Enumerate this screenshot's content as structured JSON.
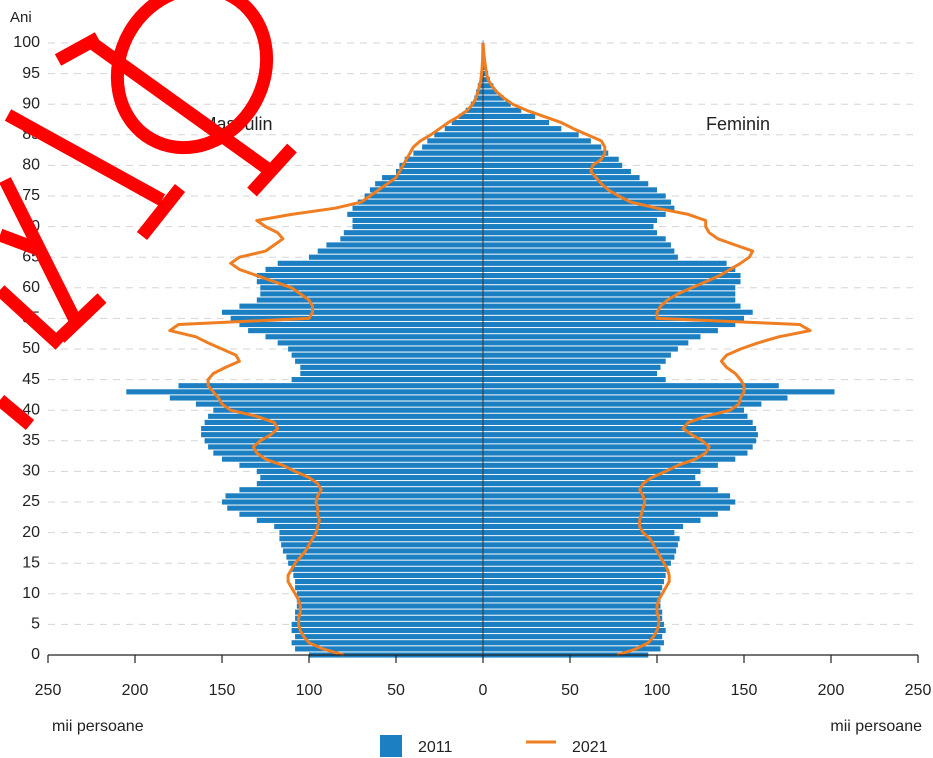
{
  "chart_data": {
    "type": "pyramid",
    "y_label": "Ani",
    "x_label": "mii persoane",
    "labels": {
      "male": "Masculin",
      "female": "Feminin"
    },
    "ages": [
      0,
      1,
      2,
      3,
      4,
      5,
      6,
      7,
      8,
      9,
      10,
      11,
      12,
      13,
      14,
      15,
      16,
      17,
      18,
      19,
      20,
      21,
      22,
      23,
      24,
      25,
      26,
      27,
      28,
      29,
      30,
      31,
      32,
      33,
      34,
      35,
      36,
      37,
      38,
      39,
      40,
      41,
      42,
      43,
      44,
      45,
      46,
      47,
      48,
      49,
      50,
      51,
      52,
      53,
      54,
      55,
      56,
      57,
      58,
      59,
      60,
      61,
      62,
      63,
      64,
      65,
      66,
      67,
      68,
      69,
      70,
      71,
      72,
      73,
      74,
      75,
      76,
      77,
      78,
      79,
      80,
      81,
      82,
      83,
      84,
      85,
      86,
      87,
      88,
      89,
      90,
      91,
      92,
      93,
      94,
      95,
      96,
      97,
      98,
      99,
      100
    ],
    "ylim": [
      0,
      100
    ],
    "yticks": [
      0,
      5,
      10,
      15,
      20,
      25,
      30,
      35,
      40,
      45,
      50,
      55,
      60,
      65,
      70,
      75,
      80,
      85,
      90,
      95,
      100
    ],
    "xlim": [
      0,
      250
    ],
    "xticks": [
      0,
      50,
      100,
      150,
      200,
      250
    ],
    "grid": true,
    "series": [
      {
        "name": "2011",
        "kind": "bar",
        "color": "#1b7fc1",
        "male": [
          100,
          108,
          110,
          108,
          110,
          110,
          108,
          108,
          107,
          107,
          107,
          108,
          108,
          109,
          110,
          112,
          113,
          115,
          116,
          117,
          117,
          120,
          130,
          140,
          147,
          150,
          148,
          140,
          130,
          128,
          130,
          140,
          150,
          155,
          158,
          160,
          162,
          162,
          160,
          158,
          155,
          165,
          180,
          205,
          175,
          110,
          105,
          105,
          108,
          110,
          112,
          118,
          125,
          135,
          140,
          145,
          150,
          140,
          130,
          128,
          128,
          130,
          130,
          125,
          118,
          100,
          95,
          90,
          82,
          80,
          75,
          75,
          78,
          75,
          72,
          68,
          65,
          62,
          58,
          50,
          48,
          45,
          40,
          35,
          32,
          28,
          22,
          18,
          14,
          10,
          7,
          5,
          4,
          3,
          2,
          1.5,
          1,
          0.7,
          0.5,
          0.3,
          0.2
        ],
        "female": [
          95,
          102,
          104,
          103,
          105,
          104,
          103,
          103,
          102,
          102,
          102,
          103,
          104,
          105,
          106,
          108,
          110,
          111,
          112,
          113,
          110,
          115,
          125,
          135,
          142,
          145,
          142,
          135,
          125,
          122,
          125,
          135,
          145,
          152,
          155,
          157,
          158,
          157,
          155,
          152,
          150,
          160,
          175,
          202,
          170,
          105,
          100,
          102,
          105,
          108,
          112,
          118,
          125,
          135,
          145,
          150,
          155,
          148,
          145,
          145,
          145,
          148,
          148,
          145,
          140,
          112,
          110,
          108,
          105,
          100,
          98,
          100,
          105,
          110,
          108,
          105,
          100,
          95,
          90,
          85,
          80,
          78,
          72,
          68,
          62,
          55,
          45,
          38,
          30,
          22,
          16,
          12,
          8,
          6,
          4,
          3,
          2,
          1.5,
          1,
          0.6,
          0.3
        ]
      },
      {
        "name": "2021",
        "kind": "line",
        "color": "#ef7d22",
        "male": [
          80,
          92,
          100,
          103,
          105,
          106,
          106,
          105,
          105,
          106,
          108,
          110,
          112,
          112,
          110,
          108,
          105,
          102,
          100,
          98,
          96,
          95,
          94,
          95,
          95,
          96,
          95,
          93,
          95,
          100,
          108,
          115,
          125,
          130,
          132,
          128,
          122,
          118,
          120,
          130,
          145,
          150,
          152,
          155,
          158,
          158,
          155,
          148,
          140,
          142,
          150,
          158,
          165,
          180,
          175,
          100,
          98,
          98,
          100,
          105,
          110,
          120,
          130,
          140,
          145,
          140,
          125,
          120,
          115,
          118,
          125,
          130,
          110,
          85,
          70,
          65,
          60,
          55,
          50,
          48,
          46,
          44,
          42,
          40,
          36,
          30,
          25,
          20,
          14,
          9,
          6,
          4,
          3,
          2,
          1.2,
          0.8,
          0.5,
          0.3,
          0.2,
          0.1,
          0.1
        ],
        "female": [
          77,
          88,
          95,
          98,
          100,
          101,
          101,
          100,
          100,
          101,
          103,
          105,
          107,
          107,
          106,
          104,
          102,
          100,
          98,
          96,
          92,
          90,
          90,
          91,
          92,
          93,
          92,
          90,
          92,
          97,
          105,
          112,
          122,
          128,
          130,
          126,
          120,
          115,
          118,
          128,
          142,
          147,
          148,
          150,
          150,
          148,
          145,
          140,
          137,
          140,
          148,
          158,
          170,
          188,
          182,
          100,
          100,
          102,
          106,
          112,
          120,
          128,
          136,
          142,
          148,
          153,
          155,
          145,
          135,
          130,
          128,
          128,
          118,
          100,
          85,
          78,
          72,
          68,
          65,
          62,
          63,
          68,
          70,
          70,
          68,
          60,
          52,
          45,
          35,
          25,
          17,
          12,
          8,
          5,
          3,
          2,
          1.5,
          1,
          0.6,
          0.3,
          0.1
        ]
      }
    ]
  }
}
